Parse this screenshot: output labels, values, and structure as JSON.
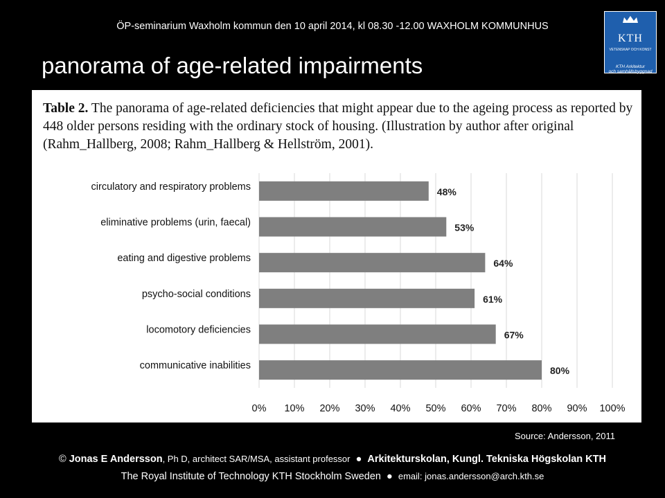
{
  "header": {
    "banner": "ÖP-seminarium Waxholm kommun  den 10 april 2014, kl 08.30 -12.00 WAXHOLM KOMMUNHUS",
    "title": "panorama of age-related impairments"
  },
  "logo": {
    "text": "KTH",
    "sub": "VETENSKAP OCH KONST",
    "caption_line1": "KTH Arkitektur",
    "caption_line2": "och samhällsbyggnad"
  },
  "table_caption": {
    "label": "Table 2.",
    "text": "The panorama of age-related deficiencies that might appear due to the ageing process as reported by 448 older persons residing with the ordinary stock of housing. (Illustration by author after original (Rahm_Hallberg, 2008; Rahm_Hallberg & Hellström, 2001)."
  },
  "chart_data": {
    "type": "bar",
    "orientation": "horizontal",
    "categories": [
      "circulatory and respiratory problems",
      "eliminative problems (urin, faecal)",
      "eating and digestive problems",
      "psycho-social conditions",
      "locomotory deficiencies",
      "communicative inabilities"
    ],
    "values": [
      48,
      53,
      64,
      61,
      67,
      80
    ],
    "value_labels": [
      "48%",
      "53%",
      "64%",
      "61%",
      "67%",
      "80%"
    ],
    "xticks": [
      "0%",
      "10%",
      "20%",
      "30%",
      "40%",
      "50%",
      "60%",
      "70%",
      "80%",
      "90%",
      "100%"
    ],
    "xlim": [
      0,
      100
    ],
    "grid": true,
    "bar_color": "#7f7f7f"
  },
  "source": "Source: Andersson, 2011",
  "footer": {
    "copyright": "©",
    "author": "Jonas E Andersson",
    "title": ", Ph D, architect SAR/MSA, assistant professor",
    "bullet": "●",
    "school": "Arkitekturskolan, Kungl. Tekniska Högskolan KTH",
    "institute": "The Royal Institute of Technology KTH Stockholm Sweden",
    "email": "email: jonas.andersson@arch.kth.se"
  }
}
